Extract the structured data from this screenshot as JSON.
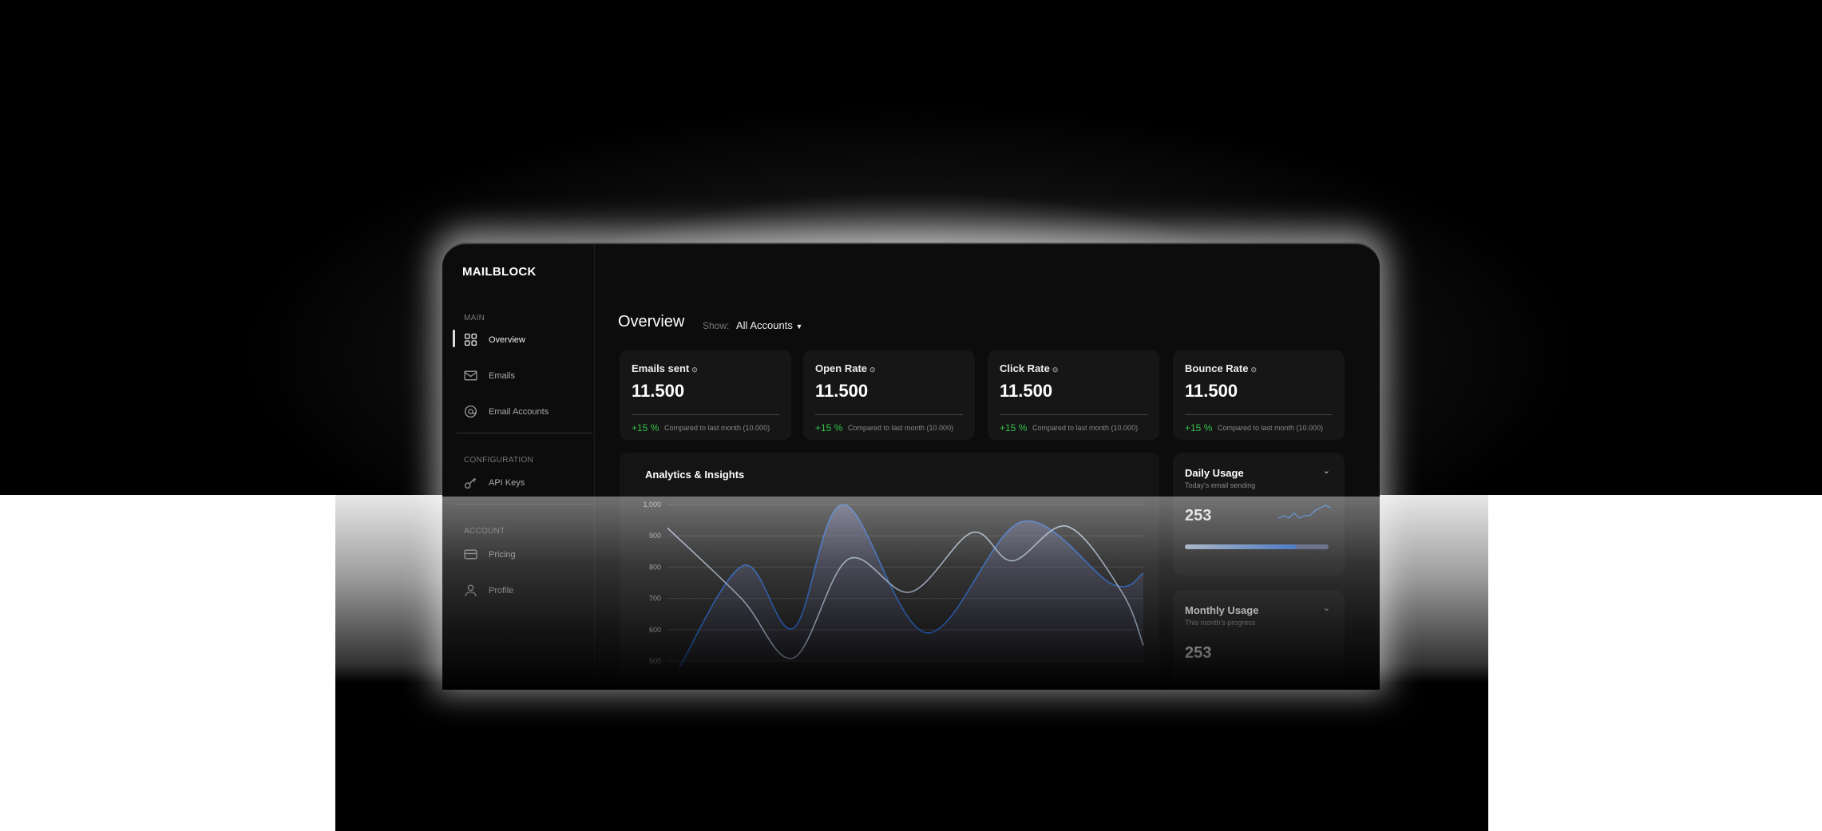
{
  "app": {
    "logo": "MAILBLOCK"
  },
  "sidebar": {
    "sections": [
      {
        "label": "MAIN"
      },
      {
        "label": "CONFIGURATION"
      },
      {
        "label": "ACCOUNT"
      }
    ],
    "items": [
      {
        "label": "Overview",
        "icon": "grid-icon",
        "active": true
      },
      {
        "label": "Emails",
        "icon": "mail-icon"
      },
      {
        "label": "Email Accounts",
        "icon": "at-icon"
      },
      {
        "label": "API Keys",
        "icon": "key-icon"
      },
      {
        "label": "Pricing",
        "icon": "credit-card-icon"
      },
      {
        "label": "Profile",
        "icon": "user-icon"
      }
    ]
  },
  "header": {
    "title": "Overview",
    "show_label": "Show:",
    "account_filter": "All Accounts"
  },
  "stats": [
    {
      "label": "Emails sent",
      "value": "11.500",
      "delta": "+15 %",
      "compare": "Compared to last month (10.000)"
    },
    {
      "label": "Open Rate",
      "value": "11.500",
      "delta": "+15 %",
      "compare": "Compared to last month (10.000)"
    },
    {
      "label": "Click Rate",
      "value": "11.500",
      "delta": "+15 %",
      "compare": "Compared to last month (10.000)"
    },
    {
      "label": "Bounce Rate",
      "value": "11.500",
      "delta": "+15 %",
      "compare": "Compared to last month (10.000)"
    }
  ],
  "colors": {
    "accent": "#1f6be0",
    "positive": "#34c04a",
    "secondary_line": "#b8cbe6"
  },
  "daily_usage": {
    "title": "Daily Usage",
    "subtitle": "Today's email sending",
    "value": "253",
    "progress": 0.78,
    "sparkline": [
      3,
      4,
      3,
      5,
      3,
      4,
      4,
      6,
      7,
      8,
      7
    ]
  },
  "monthly_usage": {
    "title": "Monthly Usage",
    "subtitle": "This month's progress",
    "value": "253"
  },
  "chart_data": {
    "type": "line",
    "title": "Analytics & Insights",
    "ylim": [
      500,
      1000
    ],
    "yticks": [
      "1,000",
      "900",
      "800",
      "700",
      "600",
      "500"
    ],
    "xlim": [
      0,
      20
    ],
    "grid": true,
    "series": [
      {
        "color": "#1f6be0",
        "filled": true,
        "points": [
          [
            0.5,
            480
          ],
          [
            3.2,
            805
          ],
          [
            5.3,
            605
          ],
          [
            7.4,
            1000
          ],
          [
            10.9,
            590
          ],
          [
            14.9,
            945
          ],
          [
            18.7,
            745
          ],
          [
            20,
            780
          ]
        ]
      },
      {
        "color": "#b8cbe6",
        "filled": false,
        "points": [
          [
            0,
            925
          ],
          [
            3.1,
            700
          ],
          [
            5.3,
            510
          ],
          [
            7.6,
            825
          ],
          [
            10.2,
            720
          ],
          [
            12.8,
            910
          ],
          [
            14.5,
            820
          ],
          [
            16.8,
            930
          ],
          [
            19.1,
            720
          ],
          [
            20,
            550
          ]
        ]
      }
    ]
  }
}
